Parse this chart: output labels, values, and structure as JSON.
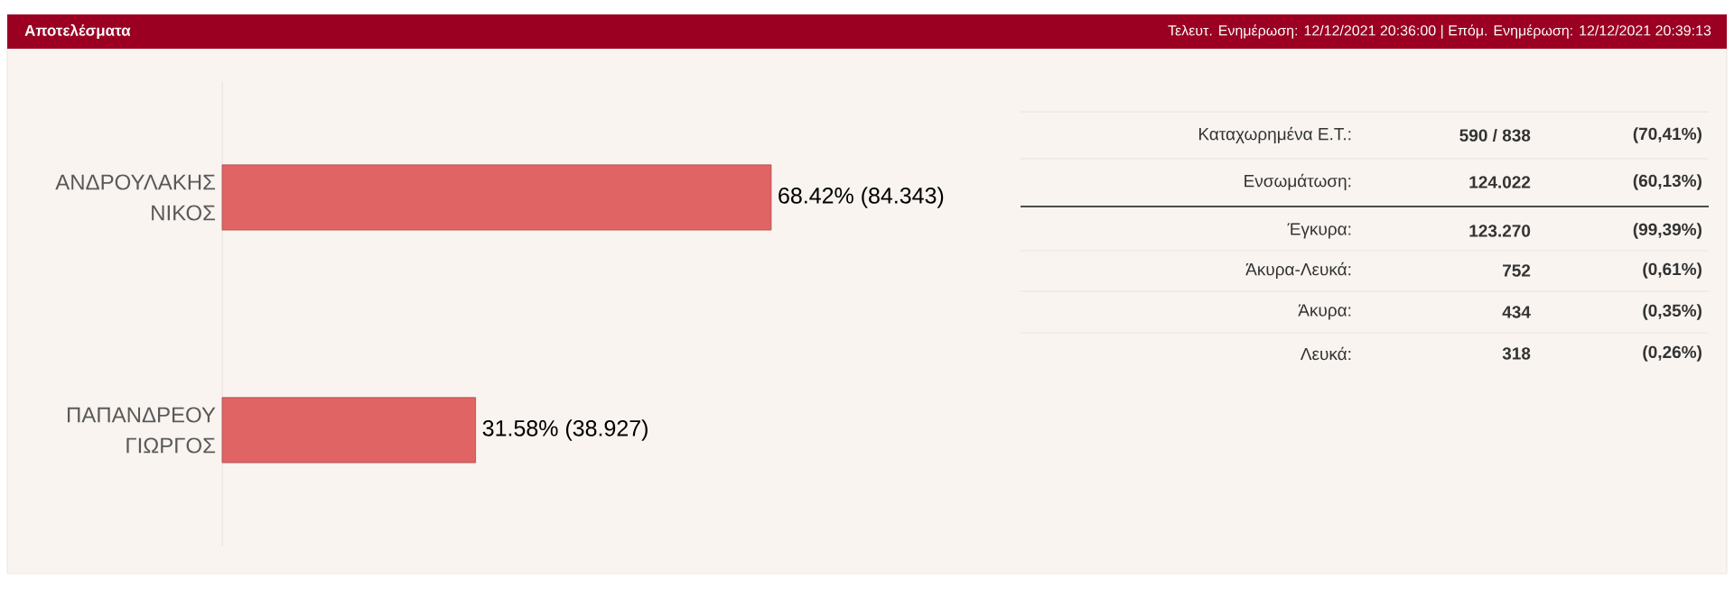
{
  "chart_data": [
    {
      "type": "bar",
      "orientation": "horizontal",
      "title": "Αποτελέσματα",
      "annotations": [
        "Τελευτ. Ενημέρωση: 12/12/2021 20:36:00 | Επόμ. Ενημέρωση: 12/12/2021 20:39:13"
      ],
      "categories": [
        "ΑΝΔΡΟΥΛΑΚΗΣ ΝΙΚΟΣ",
        "ΠΑΠΑΝΔΡΕΟΥ ΓΙΩΡΓΟΣ"
      ],
      "values": [
        68.42,
        31.58
      ],
      "value_labels": [
        "68.42% (84.343)",
        "31.58% (38.927)"
      ],
      "color": "#e06464"
    },
    {
      "type": "other",
      "annotations": [
        "Καταχωρημένα Ε.Τ.:",
        "590 / 838",
        "(70,41%)",
        "Ενσωμάτωση:",
        "124.022",
        "(60,13%)",
        "Έγκυρα:",
        "123.270",
        "(99,39%)",
        "Άκυρα-Λευκά:",
        "752",
        "(0,61%)",
        "Άκυρα:",
        "434",
        "(0,35%)",
        "Λευκά:",
        "318",
        "(0,26%)"
      ]
    }
  ]
}
